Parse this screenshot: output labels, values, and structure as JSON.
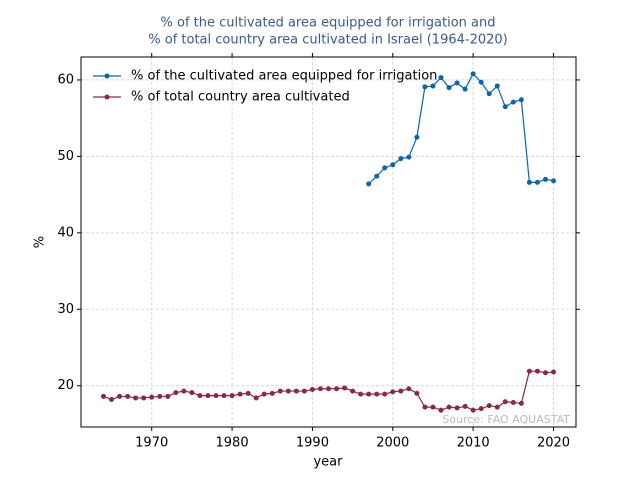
{
  "chart_data": {
    "type": "line",
    "title": [
      "% of the cultivated area equipped for irrigation and",
      "% of total country area cultivated in Israel (1964-2020)"
    ],
    "xlabel": "year",
    "ylabel": "%",
    "source": "Source: FAO AQUASTAT",
    "x": [
      1964,
      1965,
      1966,
      1967,
      1968,
      1969,
      1970,
      1971,
      1972,
      1973,
      1974,
      1975,
      1976,
      1977,
      1978,
      1979,
      1980,
      1981,
      1982,
      1983,
      1984,
      1985,
      1986,
      1987,
      1988,
      1989,
      1990,
      1991,
      1992,
      1993,
      1994,
      1995,
      1996,
      1997,
      1998,
      1999,
      2000,
      2001,
      2002,
      2003,
      2004,
      2005,
      2006,
      2007,
      2008,
      2009,
      2010,
      2011,
      2012,
      2013,
      2014,
      2015,
      2016,
      2017,
      2018,
      2019,
      2020
    ],
    "series": [
      {
        "name": "% of the cultivated area equipped for irrigation",
        "color": "#0c65a8",
        "values": [
          null,
          null,
          null,
          null,
          null,
          null,
          null,
          null,
          null,
          null,
          null,
          null,
          null,
          null,
          null,
          null,
          null,
          null,
          null,
          null,
          null,
          null,
          null,
          null,
          null,
          null,
          null,
          null,
          null,
          null,
          null,
          null,
          null,
          46.4,
          47.4,
          48.5,
          48.9,
          49.7,
          49.9,
          52.5,
          59.1,
          59.2,
          60.3,
          59.0,
          59.6,
          58.8,
          60.8,
          59.7,
          58.2,
          59.2,
          56.5,
          57.1,
          57.4,
          46.6,
          46.6,
          47.0,
          46.8
        ]
      },
      {
        "name": "% of total country area cultivated",
        "color": "#8b2a3f",
        "values": [
          18.6,
          18.2,
          18.6,
          18.6,
          18.4,
          18.4,
          18.5,
          18.6,
          18.6,
          19.1,
          19.3,
          19.1,
          18.7,
          18.7,
          18.7,
          18.7,
          18.7,
          18.9,
          19.0,
          18.4,
          18.9,
          19.0,
          19.3,
          19.3,
          19.3,
          19.3,
          19.5,
          19.6,
          19.6,
          19.6,
          19.7,
          19.3,
          18.9,
          18.9,
          18.9,
          18.9,
          19.2,
          19.3,
          19.6,
          19.0,
          17.2,
          17.2,
          16.8,
          17.2,
          17.1,
          17.3,
          16.8,
          17.0,
          17.4,
          17.2,
          17.9,
          17.8,
          17.7,
          21.9,
          21.9,
          21.7,
          21.8
        ]
      }
    ],
    "xlim": [
      1961.2,
      2022.8
    ],
    "xticks": [
      1970,
      1980,
      1990,
      2000,
      2010,
      2020
    ],
    "ylim": [
      14.6,
      63.0
    ],
    "yticks": [
      20,
      30,
      40,
      50,
      60
    ],
    "grid": true,
    "legend": "upper-left"
  }
}
